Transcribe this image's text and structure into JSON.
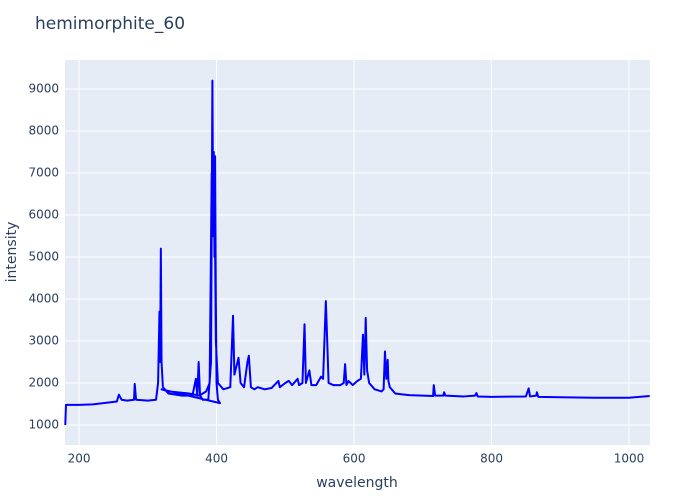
{
  "chart_data": {
    "type": "line",
    "title": "hemimorphite_60",
    "x_label": "wavelength",
    "y_label": "intensity",
    "color": "#0000ff",
    "grid": true,
    "xlim": [
      179.6,
      1030.5
    ],
    "ylim": [
      524,
      9690
    ],
    "xticks": [
      200,
      400,
      600,
      800,
      1000
    ],
    "yticks": [
      1000,
      2000,
      3000,
      4000,
      5000,
      6000,
      7000,
      8000,
      9000
    ],
    "x": [
      180,
      181,
      200,
      220,
      240,
      255,
      258,
      262,
      270,
      280,
      281,
      283,
      300,
      312,
      315,
      317,
      318,
      319,
      320,
      322,
      330,
      350,
      365,
      370,
      372,
      374,
      376,
      380,
      388,
      392,
      394,
      395,
      396,
      397,
      398,
      399,
      400,
      402,
      405,
      320,
      330,
      360,
      375,
      385,
      390,
      393,
      395,
      397,
      399,
      402,
      410,
      420,
      424,
      426,
      432,
      435,
      440,
      445,
      447,
      450,
      455,
      460,
      470,
      480,
      490,
      492,
      500,
      505,
      510,
      518,
      520,
      525,
      528,
      530,
      535,
      538,
      545,
      552,
      555,
      559,
      561,
      563,
      570,
      580,
      585,
      587,
      589,
      592,
      598,
      605,
      610,
      613,
      615,
      617,
      619,
      622,
      630,
      640,
      643,
      645,
      647,
      649,
      650,
      652,
      660,
      670,
      680,
      700,
      715,
      716,
      718,
      730,
      731,
      733,
      760,
      776,
      778,
      780,
      800,
      850,
      854,
      856,
      865,
      866,
      868,
      900,
      950,
      1000,
      1030
    ],
    "values": [
      1000,
      1480,
      1480,
      1490,
      1530,
      1560,
      1720,
      1600,
      1580,
      1600,
      1980,
      1600,
      1580,
      1600,
      2000,
      3700,
      2500,
      5200,
      2500,
      1900,
      1750,
      1700,
      1700,
      2100,
      1700,
      2500,
      1700,
      1600,
      1600,
      2500,
      9200,
      6000,
      7500,
      5000,
      7400,
      4000,
      2000,
      1600,
      1520,
      1850,
      1800,
      1750,
      1700,
      1800,
      2000,
      7000,
      5500,
      7000,
      3000,
      2000,
      1850,
      1900,
      3600,
      2200,
      2600,
      2000,
      1900,
      2500,
      2650,
      1900,
      1850,
      1900,
      1850,
      1880,
      2050,
      1900,
      2000,
      2050,
      1950,
      2100,
      1950,
      2000,
      3400,
      2000,
      2300,
      1950,
      1950,
      2150,
      2100,
      3950,
      3000,
      2000,
      1950,
      1950,
      2000,
      2450,
      1950,
      2050,
      1950,
      2050,
      2100,
      3150,
      2200,
      3550,
      2300,
      2000,
      1850,
      1800,
      1850,
      2750,
      2100,
      2550,
      2050,
      1900,
      1750,
      1730,
      1710,
      1700,
      1690,
      1950,
      1700,
      1700,
      1780,
      1700,
      1680,
      1700,
      1760,
      1680,
      1670,
      1680,
      1870,
      1680,
      1700,
      1780,
      1670,
      1660,
      1650,
      1650,
      1690
    ]
  }
}
